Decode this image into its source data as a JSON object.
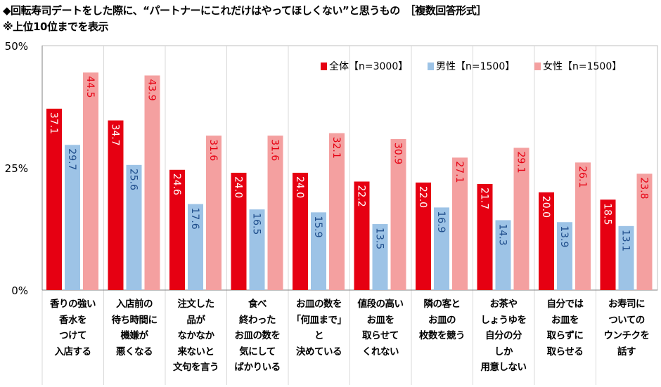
{
  "title": "◆回転寿司デートをした際に、“パートナーにこれだけはやってほしくない”と思うもの　［複数回答形式］",
  "subtitle": "※上位10位までを表示",
  "chart_data": {
    "type": "bar",
    "ylim": [
      0,
      50
    ],
    "y_ticks": [
      "0%",
      "25%",
      "50%"
    ],
    "grid": "vertical category separators",
    "legend_position": "top-right",
    "categories": [
      "香りの強い\n香水を\nつけて\n入店する",
      "入店前の\n待ち時間に\n機嫌が\n悪くなる",
      "注文した\n品が\nなかなか\n来ないと\n文句を言う",
      "食べ\n終わった\nお皿の数を\n気にして\nばかりいる",
      "お皿の数を\n「何皿まで」\nと\n決めている",
      "値段の高い\nお皿を\n取らせて\nくれない",
      "隣の客と\nお皿の\n枚数を競う",
      "お茶や\nしょうゆを\n自分の分\nしか\n用意しない",
      "自分では\nお皿を\n取らずに\n取らせる",
      "お寿司に\nついての\nウンチクを\n話す"
    ],
    "series": [
      {
        "name": "全体【n=3000】",
        "color": "#e60012",
        "label_color": "#ffffff",
        "values": [
          37.1,
          34.7,
          24.6,
          24.0,
          24.0,
          22.2,
          22.0,
          21.7,
          20.0,
          18.5
        ]
      },
      {
        "name": "男性【n=1500】",
        "color": "#9dc3e6",
        "label_color": "#1f4e8c",
        "values": [
          29.7,
          25.6,
          17.6,
          16.5,
          15.9,
          13.5,
          16.9,
          14.3,
          13.9,
          13.1
        ]
      },
      {
        "name": "女性【n=1500】",
        "color": "#f4a0a0",
        "label_color": "#e60012",
        "values": [
          44.5,
          43.9,
          31.6,
          31.6,
          32.1,
          30.9,
          27.1,
          29.1,
          26.1,
          23.8
        ]
      }
    ]
  }
}
